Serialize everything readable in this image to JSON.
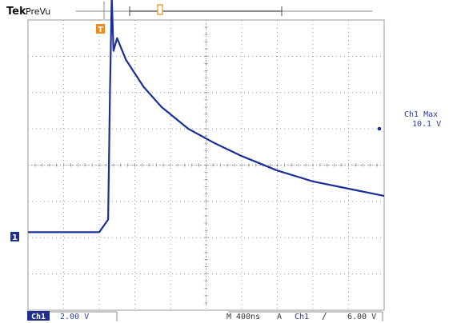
{
  "header": {
    "brand": "Tek",
    "mode": "PreVu"
  },
  "measurement": {
    "label": "Ch1 Max",
    "value": "10.1 V"
  },
  "status_bar": {
    "channel_badge": "Ch1",
    "volts_per_div": "2.00 V",
    "timebase": "M 400ns",
    "trigger_mode": "A",
    "trigger_source": "Ch1",
    "trigger_slope_symbol": "∕",
    "trigger_level": "6.00 V"
  },
  "markers": {
    "trigger_position": "T",
    "channel_ground": "1"
  },
  "colors": {
    "trace": "#1a2f9a",
    "grid": "#9a9a9a",
    "trigger_marker": "#f08a1c",
    "text_blue": "#2a3fa0",
    "badge_bg": "#1f2f8f",
    "badge_text": "#ffffff"
  },
  "chart_data": {
    "type": "line",
    "x_unit": "s",
    "y_unit": "V",
    "xlim": [
      -8e-07,
      3.2e-06
    ],
    "ylim": [
      -8,
      8
    ],
    "grid_divisions": {
      "x": 10,
      "y": 8
    },
    "series": [
      {
        "name": "Ch1",
        "x": [
          -8e-07,
          -4e-07,
          0.0,
          1e-07,
          1.2e-07,
          1.4e-07,
          1.6e-07,
          2e-07,
          3e-07,
          5e-07,
          7e-07,
          1e-06,
          1.3e-06,
          1.6e-06,
          2e-06,
          2.4e-06,
          2.8e-06,
          3.2e-06
        ],
        "y": [
          -3.7,
          -3.7,
          -3.7,
          -3.0,
          4.0,
          9.3,
          6.3,
          7.0,
          5.8,
          4.3,
          3.2,
          2.0,
          1.2,
          0.5,
          -0.3,
          -0.9,
          -1.3,
          -1.7
        ]
      }
    ]
  }
}
